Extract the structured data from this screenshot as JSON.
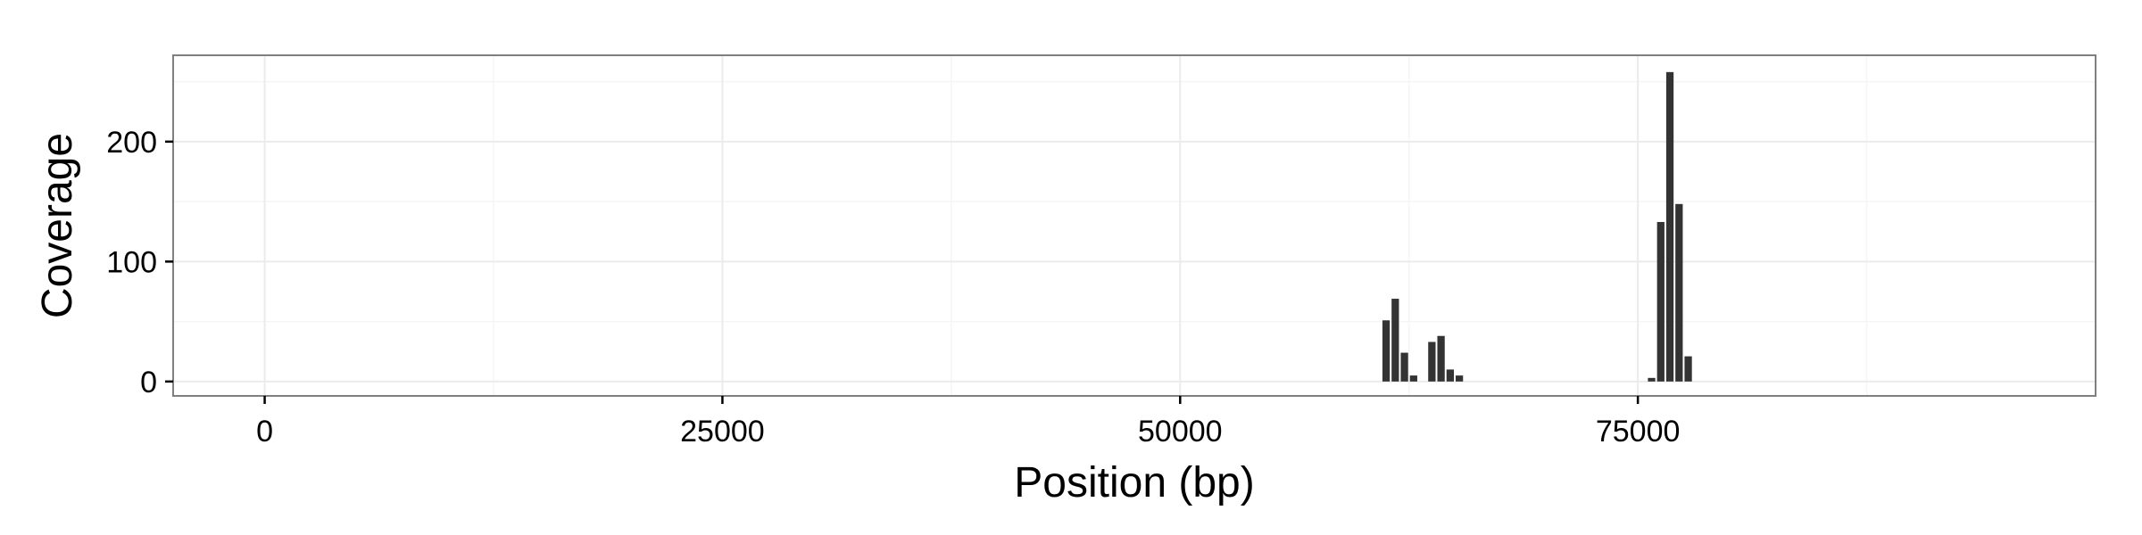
{
  "chart_data": {
    "type": "bar",
    "xlabel": "Position (bp)",
    "ylabel": "Coverage",
    "xlim": [
      -5000,
      100000
    ],
    "ylim": [
      -12,
      272
    ],
    "x_ticks": [
      0,
      25000,
      50000,
      75000
    ],
    "y_ticks": [
      0,
      100,
      200
    ],
    "x_tick_labels": [
      "0",
      "25000",
      "50000",
      "75000"
    ],
    "y_tick_labels": [
      "0",
      "100",
      "200"
    ],
    "grid": true,
    "bin_width": 500,
    "bar_color": "#333333",
    "panel_border_color": "#7f7f7f",
    "grid_color": "#ebebeb",
    "bars": [
      {
        "x": 61250,
        "y": 51
      },
      {
        "x": 61750,
        "y": 69
      },
      {
        "x": 62250,
        "y": 24
      },
      {
        "x": 62750,
        "y": 5
      },
      {
        "x": 63750,
        "y": 33
      },
      {
        "x": 64250,
        "y": 38
      },
      {
        "x": 64750,
        "y": 10
      },
      {
        "x": 65250,
        "y": 5
      },
      {
        "x": 75750,
        "y": 3
      },
      {
        "x": 76250,
        "y": 133
      },
      {
        "x": 76750,
        "y": 258
      },
      {
        "x": 77250,
        "y": 148
      },
      {
        "x": 77750,
        "y": 21
      }
    ]
  }
}
